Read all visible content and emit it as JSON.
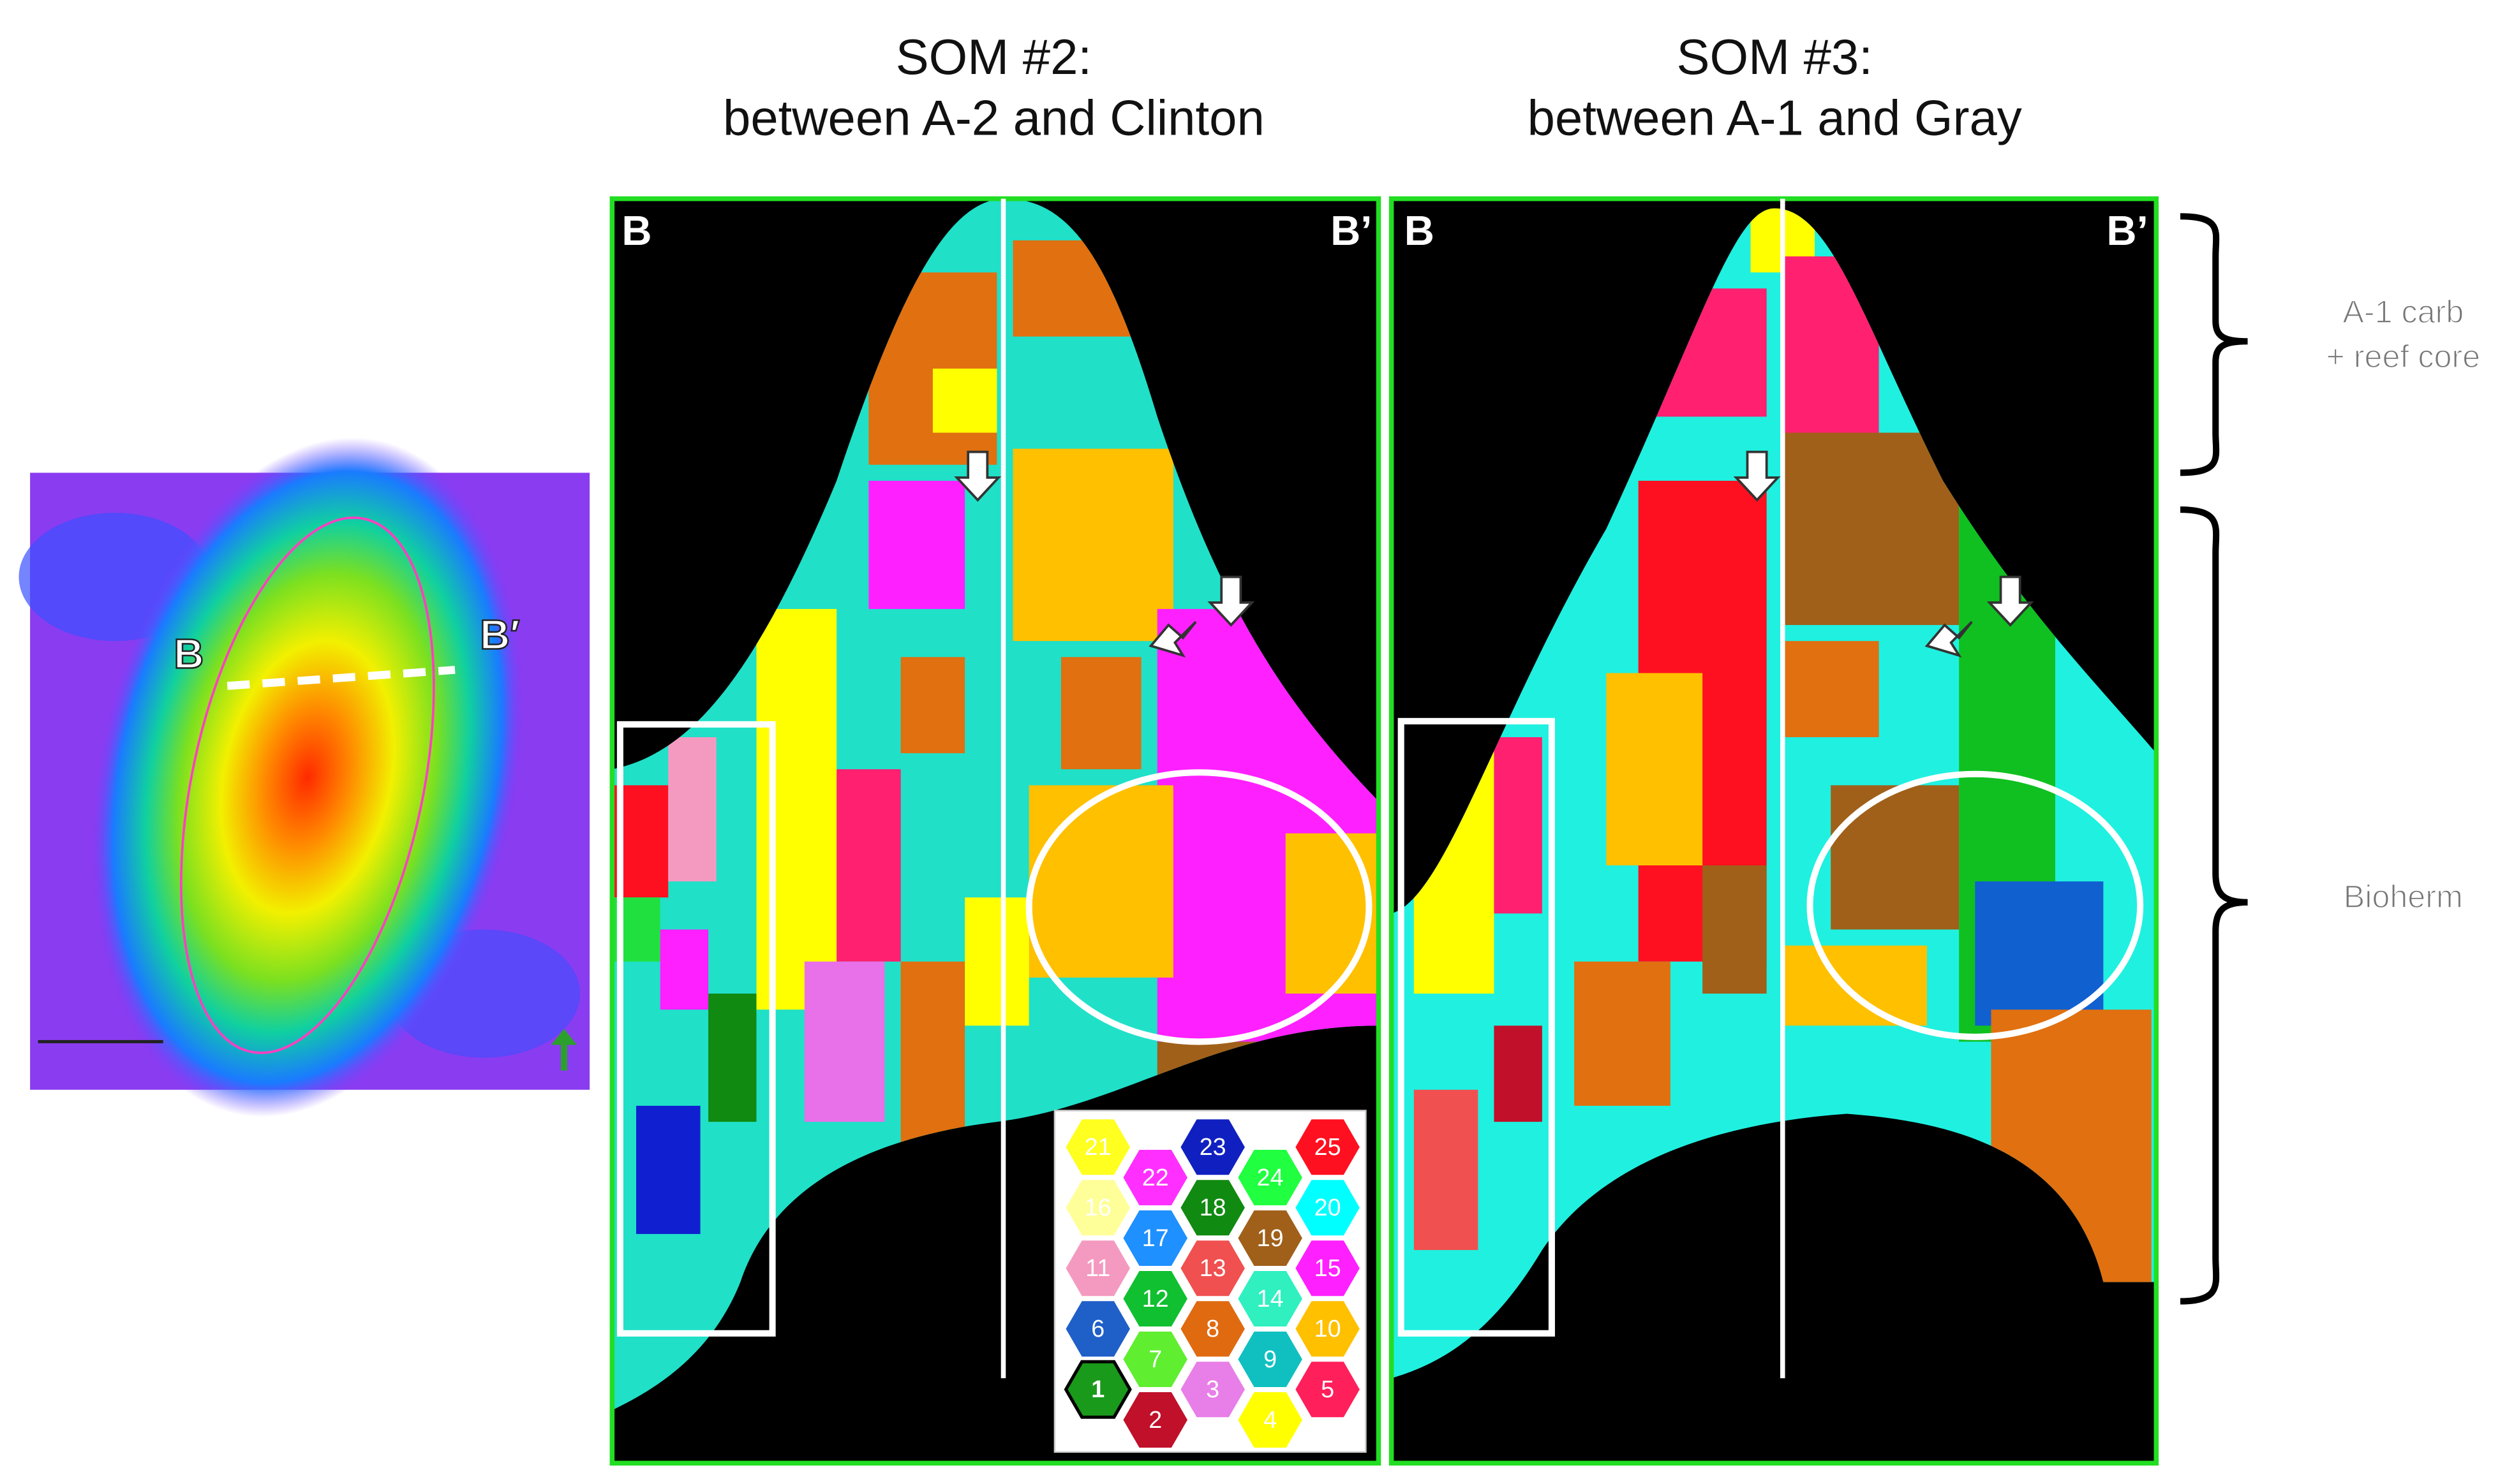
{
  "map": {
    "labels": [
      "B",
      "B′"
    ]
  },
  "panels": [
    {
      "title": [
        "SOM #2:",
        "between A-2 and Clinton"
      ],
      "left_label": "B",
      "right_label": "B’"
    },
    {
      "title": [
        "SOM #3:",
        "between A-1 and Gray"
      ],
      "left_label": "B",
      "right_label": "B’"
    }
  ],
  "annotations": [
    {
      "lines": [
        "A-1 carb",
        "+ reef core"
      ]
    },
    {
      "lines": [
        "Bioherm"
      ]
    }
  ],
  "legend": {
    "cells": [
      {
        "label": "1",
        "color": "#1a9a1a"
      },
      {
        "label": "2",
        "color": "#c0102a"
      },
      {
        "label": "3",
        "color": "#e87ee8"
      },
      {
        "label": "4",
        "color": "#ffff00"
      },
      {
        "label": "5",
        "color": "#ff1f5a"
      },
      {
        "label": "6",
        "color": "#1f5fc8"
      },
      {
        "label": "7",
        "color": "#60ee30"
      },
      {
        "label": "8",
        "color": "#e06a10"
      },
      {
        "label": "9",
        "color": "#10c0c0"
      },
      {
        "label": "10",
        "color": "#ffc000"
      },
      {
        "label": "11",
        "color": "#f49ac0"
      },
      {
        "label": "12",
        "color": "#10c030"
      },
      {
        "label": "13",
        "color": "#f05050"
      },
      {
        "label": "14",
        "color": "#30f0c0"
      },
      {
        "label": "15",
        "color": "#ff20ff"
      },
      {
        "label": "16",
        "color": "#ffff99"
      },
      {
        "label": "17",
        "color": "#1e90ff"
      },
      {
        "label": "18",
        "color": "#108a10"
      },
      {
        "label": "19",
        "color": "#a0601a"
      },
      {
        "label": "20",
        "color": "#00ffff"
      },
      {
        "label": "21",
        "color": "#ffff20"
      },
      {
        "label": "22",
        "color": "#ff30ff"
      },
      {
        "label": "23",
        "color": "#1020c0"
      },
      {
        "label": "24",
        "color": "#20ff40"
      },
      {
        "label": "25",
        "color": "#ff1020"
      }
    ]
  }
}
